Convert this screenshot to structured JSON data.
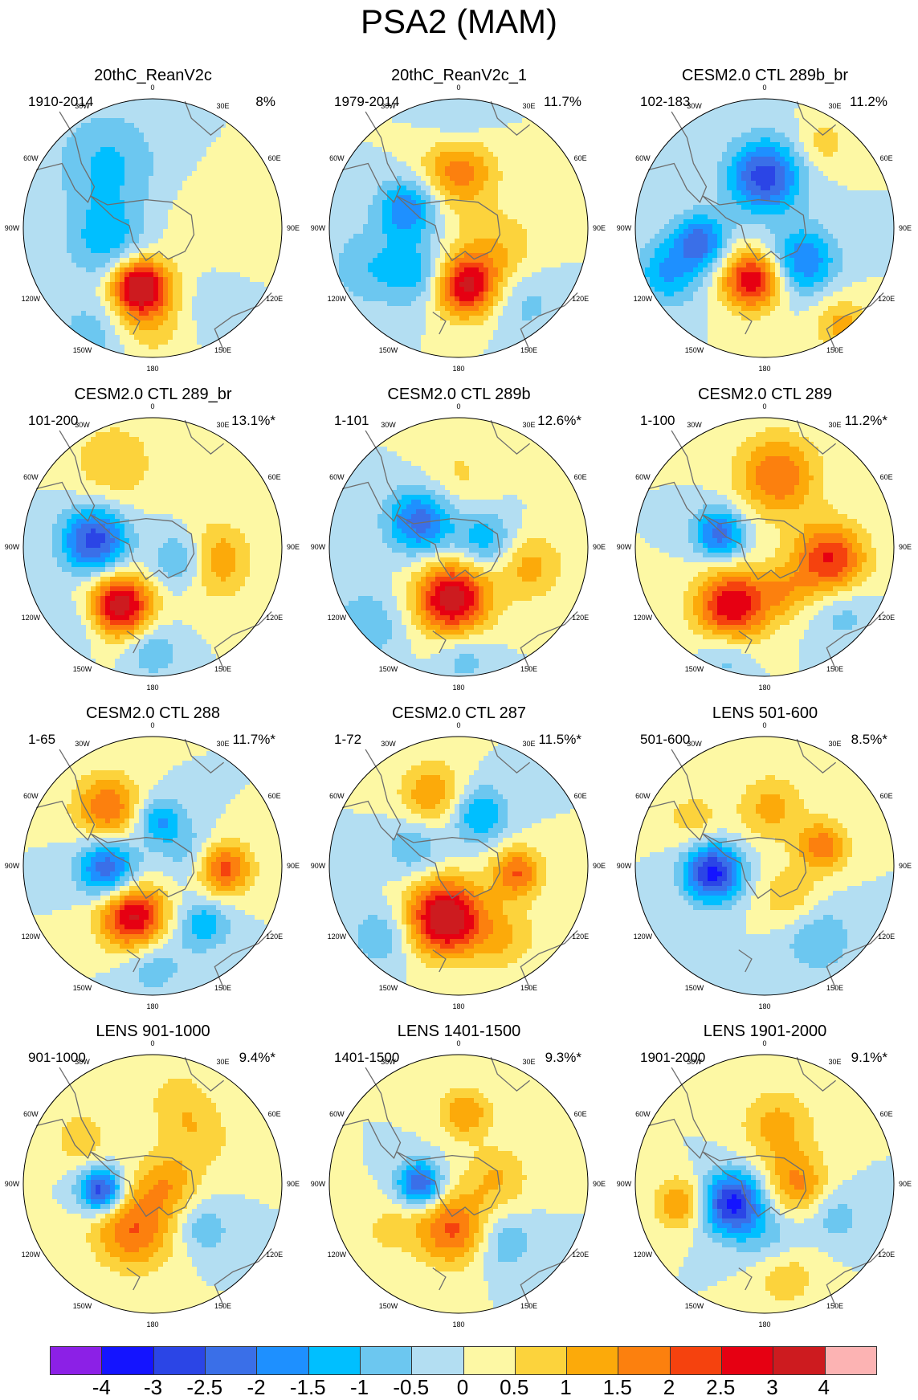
{
  "title": "PSA2 (MAM)",
  "panels": [
    {
      "title": "20thC_ReanV2c",
      "period": "1910-2014",
      "percent": "8%",
      "blobs": [
        [
          -0.6,
          1.4,
          0.12,
          0.12
        ],
        [
          -0.35,
          -0.5,
          -1.1,
          0.28
        ],
        [
          0.1,
          0.7,
          0.6,
          0.3
        ],
        [
          0.45,
          0.1,
          0.5,
          0.28
        ],
        [
          -0.35,
          0.1,
          -1.3,
          0.22
        ],
        [
          0.25,
          0.55,
          -1.2,
          0.28
        ],
        [
          -0.45,
          0.8,
          -0.9,
          0.2
        ],
        [
          -0.1,
          0.45,
          3.0,
          0.14
        ],
        [
          0.0,
          0.55,
          1.5,
          0.24
        ]
      ]
    },
    {
      "title": "20thC_ReanV2c_1",
      "period": "1979-2014",
      "percent": "11.7%",
      "blobs": [
        [
          -0.7,
          1.4,
          0.12,
          0.12
        ],
        [
          0.0,
          -0.45,
          1.8,
          0.2
        ],
        [
          -0.4,
          -0.15,
          -2.0,
          0.16
        ],
        [
          0.3,
          0.2,
          1.0,
          0.24
        ],
        [
          -0.3,
          0.35,
          -1.2,
          0.18
        ],
        [
          0.05,
          0.45,
          3.0,
          0.17
        ],
        [
          0.5,
          0.55,
          -0.8,
          0.2
        ],
        [
          -0.7,
          0.3,
          -0.9,
          0.22
        ],
        [
          0.0,
          -0.8,
          -0.6,
          0.18
        ]
      ]
    },
    {
      "title": "CESM2.0 CTL 289b_br",
      "period": "102-183",
      "percent": "11.2%",
      "blobs": [
        [
          -0.7,
          1.4,
          0.12,
          0.12
        ],
        [
          0.0,
          -0.4,
          -2.8,
          0.2
        ],
        [
          -0.5,
          0.1,
          -2.2,
          0.15
        ],
        [
          0.3,
          0.25,
          -2.0,
          0.18
        ],
        [
          -0.1,
          0.4,
          3.0,
          0.16
        ],
        [
          0.6,
          0.75,
          1.2,
          0.15
        ],
        [
          0.45,
          -0.65,
          0.8,
          0.14
        ],
        [
          -0.75,
          0.35,
          -1.5,
          0.18
        ]
      ]
    },
    {
      "title": "CESM2.0 CTL 289_br",
      "period": "101-200",
      "percent": "13.1%*",
      "blobs": [
        [
          -0.45,
          -0.05,
          -2.8,
          0.18
        ],
        [
          0.25,
          0.1,
          -1.8,
          0.16
        ],
        [
          -0.25,
          0.45,
          3.4,
          0.17
        ],
        [
          0.45,
          0.1,
          1.8,
          0.2
        ],
        [
          -0.3,
          -0.65,
          1.0,
          0.22
        ],
        [
          0.0,
          0.8,
          -1.0,
          0.14
        ],
        [
          -0.6,
          0.6,
          -0.6,
          0.15
        ]
      ]
    },
    {
      "title": "CESM2.0 CTL 289b",
      "period": "1-101",
      "percent": "12.6%*",
      "blobs": [
        [
          -0.3,
          -0.2,
          -2.3,
          0.18
        ],
        [
          0.2,
          -0.05,
          -1.4,
          0.16
        ],
        [
          -0.05,
          0.4,
          3.4,
          0.2
        ],
        [
          0.55,
          0.15,
          1.2,
          0.18
        ],
        [
          0.0,
          -0.55,
          0.6,
          0.2
        ],
        [
          -0.7,
          0.6,
          -0.9,
          0.2
        ],
        [
          0.05,
          0.85,
          -0.8,
          0.15
        ]
      ]
    },
    {
      "title": "CESM2.0 CTL 289",
      "period": "1-100",
      "percent": "11.2%*",
      "blobs": [
        [
          -0.35,
          -0.1,
          -2.3,
          0.14
        ],
        [
          0.1,
          -0.55,
          2.0,
          0.22
        ],
        [
          0.5,
          0.1,
          2.6,
          0.2
        ],
        [
          -0.25,
          0.45,
          3.0,
          0.2
        ],
        [
          0.15,
          0.35,
          1.0,
          0.14
        ],
        [
          -0.3,
          0.85,
          -0.8,
          0.14
        ],
        [
          0.6,
          0.5,
          -0.8,
          0.17
        ]
      ]
    },
    {
      "title": "CESM2.0 CTL 288",
      "period": "1-65",
      "percent": "11.7%*",
      "blobs": [
        [
          -0.35,
          -0.45,
          2.0,
          0.18
        ],
        [
          0.05,
          -0.35,
          -1.6,
          0.13
        ],
        [
          -0.35,
          0.02,
          -2.5,
          0.16
        ],
        [
          0.55,
          0.02,
          2.3,
          0.15
        ],
        [
          -0.15,
          0.4,
          3.2,
          0.18
        ],
        [
          0.4,
          0.45,
          -1.4,
          0.14
        ],
        [
          0.0,
          0.75,
          -0.9,
          0.18
        ],
        [
          0.3,
          -0.1,
          -0.8,
          0.16
        ]
      ]
    },
    {
      "title": "CESM2.0 CTL 287",
      "period": "1-72",
      "percent": "11.5%*",
      "blobs": [
        [
          -0.2,
          -0.55,
          1.5,
          0.18
        ],
        [
          0.15,
          -0.4,
          -1.6,
          0.16
        ],
        [
          -0.35,
          -0.15,
          -1.0,
          0.16
        ],
        [
          0.45,
          0.05,
          2.0,
          0.14
        ],
        [
          -0.1,
          0.4,
          3.8,
          0.2
        ],
        [
          0.35,
          0.55,
          1.0,
          0.18
        ],
        [
          -0.6,
          0.55,
          -1.0,
          0.16
        ]
      ]
    },
    {
      "title": "LENS 501-600",
      "period": "501-600",
      "percent": "8.5%*",
      "blobs": [
        [
          -0.4,
          0.05,
          -3.2,
          0.16
        ],
        [
          0.05,
          -0.45,
          1.2,
          0.18
        ],
        [
          0.45,
          -0.15,
          1.8,
          0.14
        ],
        [
          0.2,
          0.25,
          1.0,
          0.17
        ],
        [
          0.4,
          0.55,
          -1.0,
          0.2
        ],
        [
          -0.55,
          -0.35,
          0.8,
          0.16
        ]
      ]
    },
    {
      "title": "LENS 901-1000",
      "period": "901-1000",
      "percent": "9.4%*",
      "blobs": [
        [
          -0.4,
          0.05,
          -3.0,
          0.12
        ],
        [
          -0.15,
          0.35,
          2.0,
          0.22
        ],
        [
          0.1,
          0.0,
          1.2,
          0.16
        ],
        [
          0.35,
          -0.35,
          0.8,
          0.2
        ],
        [
          0.4,
          0.35,
          -0.9,
          0.14
        ],
        [
          -0.55,
          -0.35,
          0.9,
          0.15
        ],
        [
          0.2,
          -0.65,
          0.7,
          0.18
        ]
      ]
    },
    {
      "title": "LENS 1401-1500",
      "period": "1401-1500",
      "percent": "9.3%*",
      "blobs": [
        [
          -0.3,
          0.0,
          -2.7,
          0.12
        ],
        [
          -0.05,
          0.35,
          2.1,
          0.2
        ],
        [
          0.05,
          -0.55,
          1.5,
          0.14
        ],
        [
          0.3,
          -0.05,
          1.0,
          0.18
        ],
        [
          0.35,
          0.45,
          -1.0,
          0.16
        ],
        [
          -0.55,
          0.35,
          0.6,
          0.16
        ]
      ]
    },
    {
      "title": "LENS 1901-2000",
      "period": "1901-2000",
      "percent": "9.1%*",
      "blobs": [
        [
          -0.25,
          0.15,
          -3.2,
          0.17
        ],
        [
          0.25,
          0.0,
          1.6,
          0.17
        ],
        [
          -0.65,
          0.15,
          1.6,
          0.14
        ],
        [
          0.1,
          -0.45,
          1.2,
          0.2
        ],
        [
          0.15,
          0.7,
          1.0,
          0.18
        ],
        [
          0.55,
          0.25,
          -0.8,
          0.15
        ],
        [
          0.05,
          0.45,
          -0.8,
          0.18
        ]
      ]
    }
  ],
  "lon_labels": [
    "0",
    "30E",
    "60E",
    "90E",
    "120E",
    "150E",
    "180",
    "150W",
    "120W",
    "90W",
    "60W",
    "30W"
  ],
  "colorbar": {
    "colors": [
      "#8c20e6",
      "#1414ff",
      "#2b45e6",
      "#3a6fe8",
      "#1e90ff",
      "#00bfff",
      "#6cc7f0",
      "#b3def2",
      "#fdf8a4",
      "#fcd33c",
      "#fcaa0a",
      "#fc800e",
      "#f5420e",
      "#e60012",
      "#cd1b1f",
      "#fcb3b3"
    ],
    "labels": [
      "-4",
      "-3",
      "-2.5",
      "-2",
      "-1.5",
      "-1",
      "-0.5",
      "0",
      "0.5",
      "1",
      "1.5",
      "2",
      "2.5",
      "3",
      "4"
    ],
    "levels": [
      -4,
      -3,
      -2.5,
      -2,
      -1.5,
      -1,
      -0.5,
      0,
      0.5,
      1,
      1.5,
      2,
      2.5,
      3,
      4
    ]
  },
  "coast_color": "#6e6e6e"
}
